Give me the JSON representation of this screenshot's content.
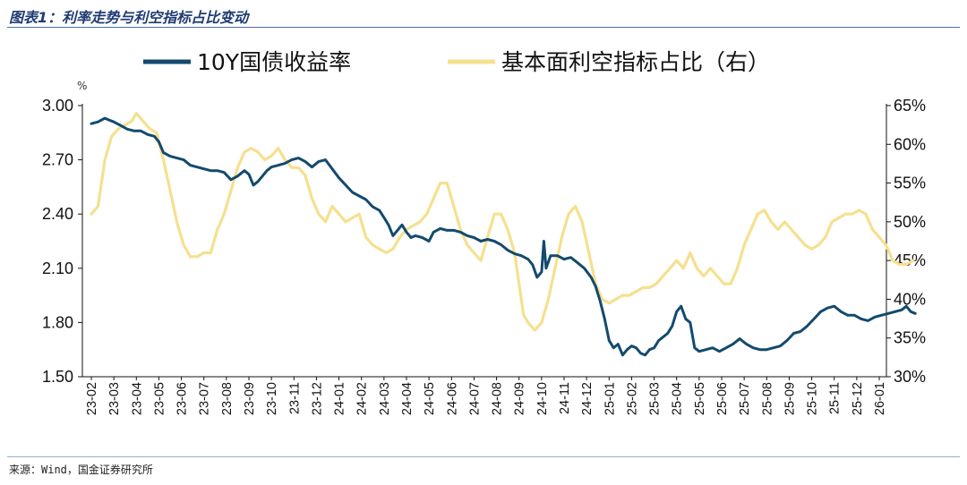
{
  "header": {
    "title": "图表1：利率走势与利空指标占比变动"
  },
  "footer": {
    "source": "来源：Wind，国金证券研究所"
  },
  "colors": {
    "series1": "#134a6e",
    "series2": "#f5e08f",
    "axis": "#111111"
  },
  "chart_data": {
    "type": "line",
    "ylabel_unit": "%",
    "left_axis": {
      "ylim": [
        1.5,
        3.0
      ],
      "ticks": [
        "1.50",
        "1.80",
        "2.10",
        "2.40",
        "2.70",
        "3.00"
      ]
    },
    "right_axis": {
      "ylim": [
        30,
        65
      ],
      "ticks": [
        "30%",
        "35%",
        "40%",
        "45%",
        "50%",
        "55%",
        "60%",
        "65%"
      ]
    },
    "categories": [
      "23-02",
      "23-03",
      "23-04",
      "23-05",
      "23-06",
      "23-07",
      "23-08",
      "23-09",
      "23-10",
      "23-11",
      "23-12",
      "24-01",
      "24-02",
      "24-03",
      "24-04",
      "24-05",
      "24-06",
      "24-07",
      "24-08",
      "24-09",
      "24-10",
      "24-11",
      "24-12",
      "25-01",
      "25-02",
      "25-03",
      "25-04",
      "25-05",
      "25-06",
      "25-07",
      "25-08",
      "25-09",
      "25-10",
      "25-11",
      "25-12",
      "26-01"
    ],
    "legend": {
      "placement": "top"
    },
    "series": [
      {
        "name": "10Y国债收益率",
        "axis": "left",
        "color": "#134a6e",
        "points": [
          [
            0,
            2.9
          ],
          [
            0.3,
            2.91
          ],
          [
            0.6,
            2.93
          ],
          [
            0.8,
            2.92
          ],
          [
            1.0,
            2.91
          ],
          [
            1.3,
            2.89
          ],
          [
            1.6,
            2.87
          ],
          [
            1.9,
            2.86
          ],
          [
            2.2,
            2.86
          ],
          [
            2.5,
            2.84
          ],
          [
            2.8,
            2.83
          ],
          [
            3.0,
            2.8
          ],
          [
            3.2,
            2.74
          ],
          [
            3.5,
            2.72
          ],
          [
            3.8,
            2.71
          ],
          [
            4.1,
            2.7
          ],
          [
            4.4,
            2.67
          ],
          [
            4.7,
            2.66
          ],
          [
            5.0,
            2.65
          ],
          [
            5.3,
            2.64
          ],
          [
            5.6,
            2.64
          ],
          [
            5.9,
            2.63
          ],
          [
            6.2,
            2.59
          ],
          [
            6.5,
            2.61
          ],
          [
            6.8,
            2.64
          ],
          [
            7.0,
            2.62
          ],
          [
            7.2,
            2.56
          ],
          [
            7.4,
            2.58
          ],
          [
            7.6,
            2.61
          ],
          [
            7.8,
            2.64
          ],
          [
            8.0,
            2.66
          ],
          [
            8.3,
            2.67
          ],
          [
            8.6,
            2.68
          ],
          [
            8.9,
            2.7
          ],
          [
            9.2,
            2.71
          ],
          [
            9.5,
            2.69
          ],
          [
            9.8,
            2.66
          ],
          [
            10.1,
            2.69
          ],
          [
            10.4,
            2.7
          ],
          [
            10.7,
            2.65
          ],
          [
            11.0,
            2.6
          ],
          [
            11.3,
            2.56
          ],
          [
            11.6,
            2.52
          ],
          [
            11.9,
            2.5
          ],
          [
            12.2,
            2.48
          ],
          [
            12.5,
            2.44
          ],
          [
            12.8,
            2.42
          ],
          [
            13.0,
            2.38
          ],
          [
            13.2,
            2.34
          ],
          [
            13.4,
            2.28
          ],
          [
            13.6,
            2.31
          ],
          [
            13.8,
            2.34
          ],
          [
            14.0,
            2.3
          ],
          [
            14.2,
            2.27
          ],
          [
            14.4,
            2.28
          ],
          [
            14.7,
            2.27
          ],
          [
            15.0,
            2.25
          ],
          [
            15.2,
            2.3
          ],
          [
            15.5,
            2.32
          ],
          [
            15.8,
            2.31
          ],
          [
            16.1,
            2.31
          ],
          [
            16.4,
            2.3
          ],
          [
            16.7,
            2.28
          ],
          [
            17.0,
            2.27
          ],
          [
            17.3,
            2.25
          ],
          [
            17.6,
            2.26
          ],
          [
            17.9,
            2.25
          ],
          [
            18.2,
            2.23
          ],
          [
            18.5,
            2.2
          ],
          [
            18.8,
            2.18
          ],
          [
            19.1,
            2.17
          ],
          [
            19.4,
            2.15
          ],
          [
            19.6,
            2.12
          ],
          [
            19.8,
            2.05
          ],
          [
            20.0,
            2.08
          ],
          [
            20.1,
            2.25
          ],
          [
            20.2,
            2.1
          ],
          [
            20.4,
            2.17
          ],
          [
            20.7,
            2.17
          ],
          [
            21.0,
            2.15
          ],
          [
            21.3,
            2.16
          ],
          [
            21.6,
            2.13
          ],
          [
            21.9,
            2.1
          ],
          [
            22.2,
            2.05
          ],
          [
            22.4,
            2.0
          ],
          [
            22.6,
            1.92
          ],
          [
            22.8,
            1.82
          ],
          [
            23.0,
            1.7
          ],
          [
            23.2,
            1.66
          ],
          [
            23.4,
            1.68
          ],
          [
            23.6,
            1.62
          ],
          [
            23.8,
            1.65
          ],
          [
            24.0,
            1.67
          ],
          [
            24.2,
            1.66
          ],
          [
            24.4,
            1.63
          ],
          [
            24.6,
            1.62
          ],
          [
            24.8,
            1.65
          ],
          [
            25.0,
            1.66
          ],
          [
            25.2,
            1.7
          ],
          [
            25.4,
            1.72
          ],
          [
            25.6,
            1.74
          ],
          [
            25.8,
            1.78
          ],
          [
            26.0,
            1.86
          ],
          [
            26.2,
            1.89
          ],
          [
            26.4,
            1.82
          ],
          [
            26.6,
            1.8
          ],
          [
            26.8,
            1.66
          ],
          [
            27.0,
            1.64
          ],
          [
            27.3,
            1.65
          ],
          [
            27.6,
            1.66
          ],
          [
            27.9,
            1.64
          ],
          [
            28.2,
            1.66
          ],
          [
            28.5,
            1.68
          ],
          [
            28.8,
            1.71
          ],
          [
            29.1,
            1.68
          ],
          [
            29.4,
            1.66
          ],
          [
            29.7,
            1.65
          ],
          [
            30.0,
            1.65
          ],
          [
            30.3,
            1.66
          ],
          [
            30.6,
            1.67
          ],
          [
            30.9,
            1.7
          ],
          [
            31.2,
            1.74
          ],
          [
            31.5,
            1.75
          ],
          [
            31.8,
            1.78
          ],
          [
            32.1,
            1.82
          ],
          [
            32.4,
            1.86
          ],
          [
            32.7,
            1.88
          ],
          [
            33.0,
            1.89
          ],
          [
            33.3,
            1.86
          ],
          [
            33.6,
            1.84
          ],
          [
            33.9,
            1.84
          ],
          [
            34.2,
            1.82
          ],
          [
            34.5,
            1.81
          ],
          [
            34.8,
            1.83
          ],
          [
            35.1,
            1.84
          ],
          [
            35.4,
            1.85
          ],
          [
            35.7,
            1.86
          ],
          [
            36.0,
            1.87
          ],
          [
            36.2,
            1.89
          ],
          [
            36.4,
            1.86
          ],
          [
            36.6,
            1.85
          ]
        ]
      },
      {
        "name": "基本面利空指标占比（右）",
        "axis": "right",
        "color": "#f5e08f",
        "points": [
          [
            0,
            51
          ],
          [
            0.3,
            52
          ],
          [
            0.6,
            58
          ],
          [
            0.9,
            61
          ],
          [
            1.2,
            62
          ],
          [
            1.5,
            62.5
          ],
          [
            1.8,
            63
          ],
          [
            2.0,
            64
          ],
          [
            2.3,
            63
          ],
          [
            2.6,
            62
          ],
          [
            2.9,
            61.5
          ],
          [
            3.2,
            58
          ],
          [
            3.5,
            54
          ],
          [
            3.8,
            50
          ],
          [
            4.1,
            47
          ],
          [
            4.4,
            45.5
          ],
          [
            4.7,
            45.5
          ],
          [
            5.0,
            46
          ],
          [
            5.3,
            46
          ],
          [
            5.6,
            49
          ],
          [
            5.9,
            51
          ],
          [
            6.2,
            54
          ],
          [
            6.5,
            57
          ],
          [
            6.8,
            59
          ],
          [
            7.1,
            59.5
          ],
          [
            7.4,
            59
          ],
          [
            7.7,
            58
          ],
          [
            8.0,
            58.5
          ],
          [
            8.3,
            59.5
          ],
          [
            8.6,
            58
          ],
          [
            8.9,
            57
          ],
          [
            9.2,
            57
          ],
          [
            9.5,
            56
          ],
          [
            9.8,
            53
          ],
          [
            10.1,
            51
          ],
          [
            10.4,
            50
          ],
          [
            10.7,
            52
          ],
          [
            11.0,
            51
          ],
          [
            11.3,
            50
          ],
          [
            11.6,
            50.5
          ],
          [
            11.9,
            51
          ],
          [
            12.2,
            48
          ],
          [
            12.5,
            47
          ],
          [
            12.8,
            46.5
          ],
          [
            13.1,
            46
          ],
          [
            13.4,
            46.5
          ],
          [
            13.7,
            48
          ],
          [
            14.0,
            49
          ],
          [
            14.3,
            49.5
          ],
          [
            14.6,
            50
          ],
          [
            14.9,
            51
          ],
          [
            15.2,
            53
          ],
          [
            15.5,
            55
          ],
          [
            15.8,
            55
          ],
          [
            16.1,
            52
          ],
          [
            16.4,
            49
          ],
          [
            16.7,
            47
          ],
          [
            17.0,
            46
          ],
          [
            17.3,
            45
          ],
          [
            17.6,
            48
          ],
          [
            17.9,
            51
          ],
          [
            18.2,
            51
          ],
          [
            18.5,
            49
          ],
          [
            18.8,
            46
          ],
          [
            19.0,
            42
          ],
          [
            19.2,
            38
          ],
          [
            19.4,
            37
          ],
          [
            19.7,
            36
          ],
          [
            20.0,
            37
          ],
          [
            20.3,
            40
          ],
          [
            20.6,
            44
          ],
          [
            20.9,
            48
          ],
          [
            21.2,
            51
          ],
          [
            21.5,
            52
          ],
          [
            21.8,
            50
          ],
          [
            22.1,
            46
          ],
          [
            22.4,
            42
          ],
          [
            22.7,
            40
          ],
          [
            23.0,
            39.5
          ],
          [
            23.3,
            40
          ],
          [
            23.6,
            40.5
          ],
          [
            23.9,
            40.5
          ],
          [
            24.2,
            41
          ],
          [
            24.5,
            41.5
          ],
          [
            24.8,
            41.5
          ],
          [
            25.1,
            42
          ],
          [
            25.4,
            43
          ],
          [
            25.7,
            44
          ],
          [
            26.0,
            45
          ],
          [
            26.3,
            44
          ],
          [
            26.6,
            46
          ],
          [
            26.9,
            44
          ],
          [
            27.2,
            43
          ],
          [
            27.5,
            44
          ],
          [
            27.8,
            43
          ],
          [
            28.1,
            42
          ],
          [
            28.4,
            42
          ],
          [
            28.7,
            44
          ],
          [
            29.0,
            47
          ],
          [
            29.3,
            49
          ],
          [
            29.6,
            51
          ],
          [
            29.9,
            51.5
          ],
          [
            30.2,
            50
          ],
          [
            30.5,
            49
          ],
          [
            30.8,
            50
          ],
          [
            31.1,
            49
          ],
          [
            31.4,
            48
          ],
          [
            31.7,
            47
          ],
          [
            32.0,
            46.5
          ],
          [
            32.3,
            47
          ],
          [
            32.6,
            48
          ],
          [
            32.9,
            50
          ],
          [
            33.2,
            50.5
          ],
          [
            33.5,
            51
          ],
          [
            33.8,
            51
          ],
          [
            34.1,
            51.5
          ],
          [
            34.4,
            51
          ],
          [
            34.7,
            49
          ],
          [
            35.0,
            48
          ],
          [
            35.3,
            47
          ],
          [
            35.6,
            45
          ],
          [
            35.9,
            44.5
          ],
          [
            36.2,
            44.5
          ],
          [
            36.5,
            45
          ]
        ]
      }
    ]
  }
}
